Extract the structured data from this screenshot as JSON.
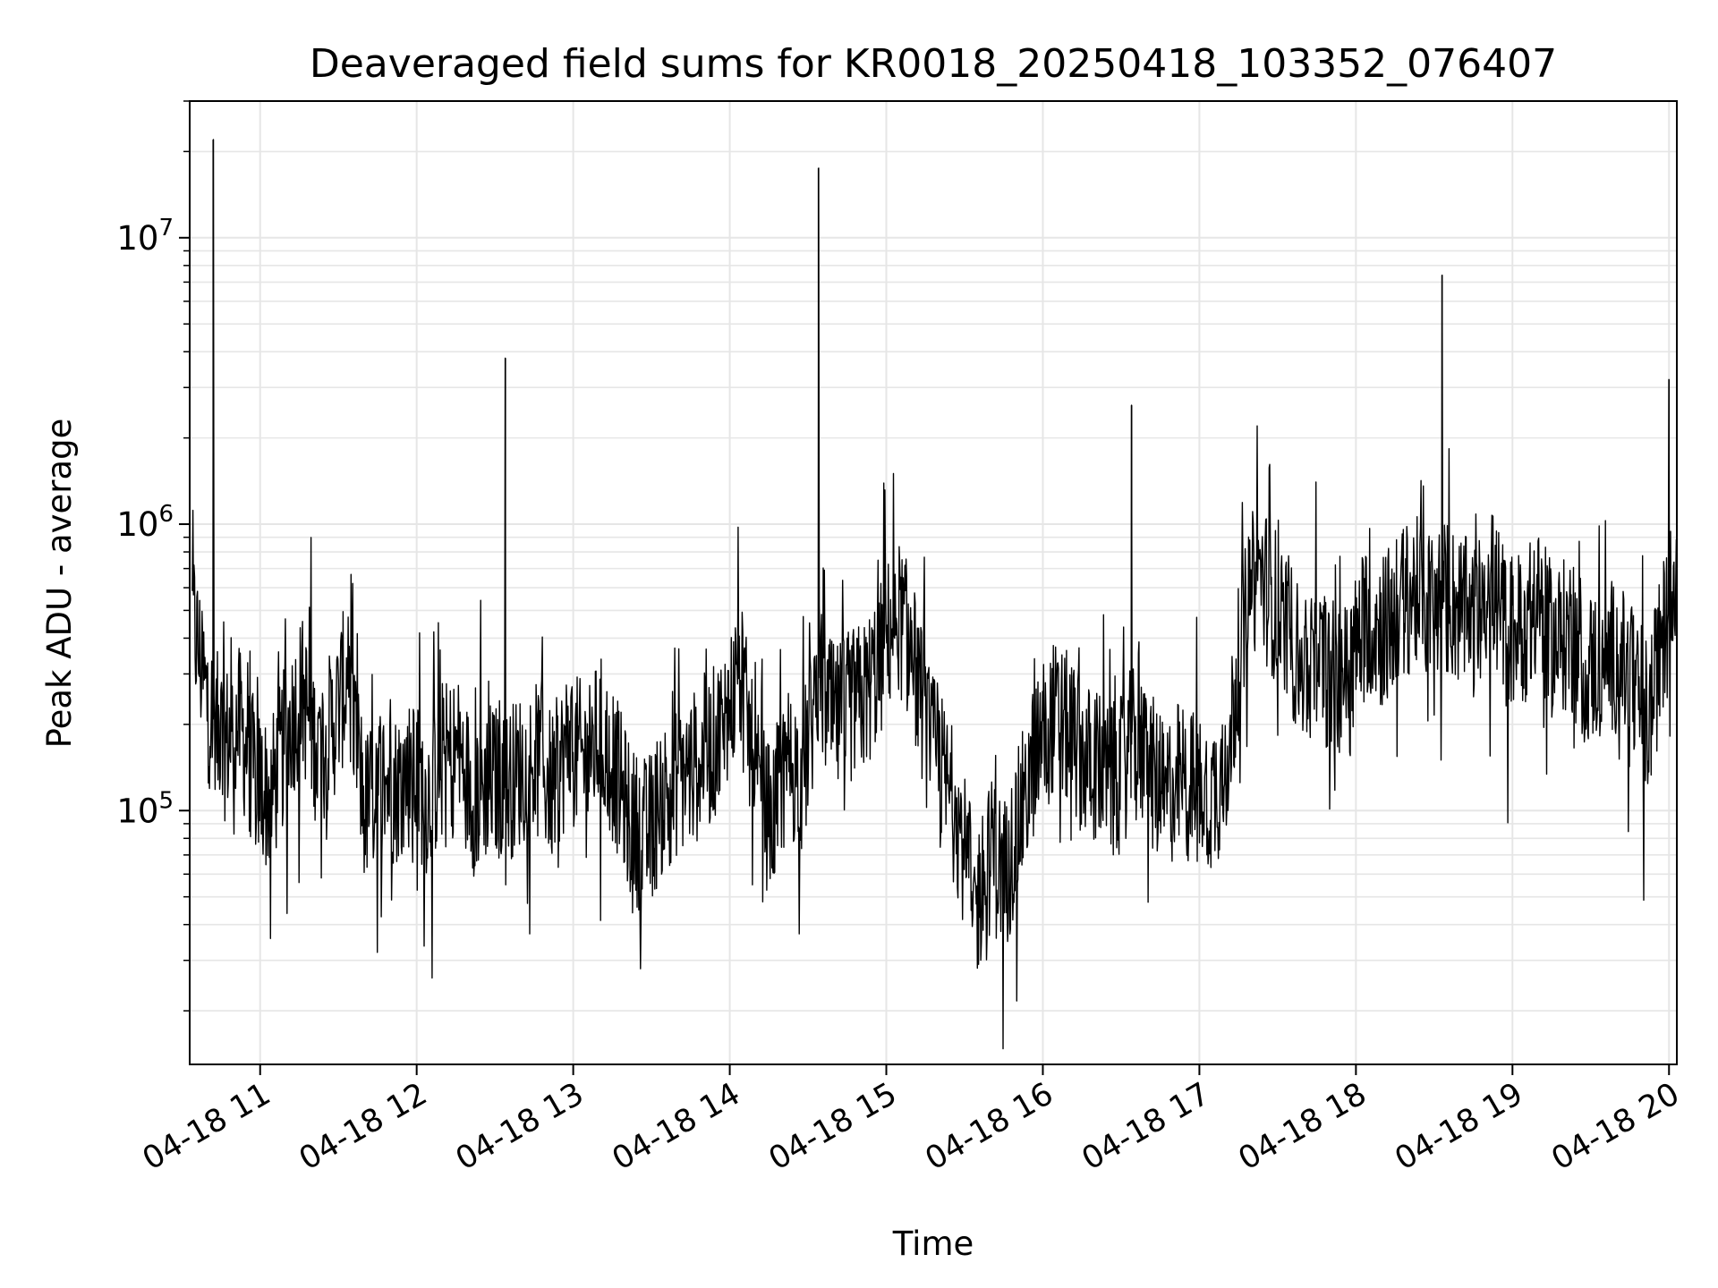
{
  "chart_data": {
    "type": "line",
    "title": "Deaveraged field sums for KR0018_20250418_103352_076407",
    "xlabel": "Time",
    "ylabel": "Peak ADU - average",
    "x_tick_labels": [
      "04-18 11",
      "04-18 12",
      "04-18 13",
      "04-18 14",
      "04-18 15",
      "04-18 16",
      "04-18 17",
      "04-18 18",
      "04-18 19",
      "04-18 20"
    ],
    "y_scale": "log",
    "y_tick_labels": [
      {
        "value": 100000,
        "base": "10",
        "exp": "5"
      },
      {
        "value": 1000000,
        "base": "10",
        "exp": "6"
      },
      {
        "value": 10000000,
        "base": "10",
        "exp": "7"
      }
    ],
    "xlim": [
      "2025-04-18 10:33",
      "2025-04-18 20:03"
    ],
    "ylim": [
      13000,
      30000000
    ],
    "grid": true,
    "line_color": "#000000",
    "grid_color": "#e6e6e6",
    "series": [
      {
        "x": [
          "2025-04-18 10:34",
          "2025-04-18 10:40",
          "2025-04-18 10:46",
          "2025-04-18 10:52",
          "2025-04-18 10:58",
          "2025-04-18 11:04",
          "2025-04-18 11:10",
          "2025-04-18 11:16",
          "2025-04-18 11:22",
          "2025-04-18 11:28",
          "2025-04-18 11:34",
          "2025-04-18 11:40",
          "2025-04-18 11:46",
          "2025-04-18 11:52",
          "2025-04-18 11:58",
          "2025-04-18 12:04",
          "2025-04-18 12:10",
          "2025-04-18 12:16",
          "2025-04-18 12:22",
          "2025-04-18 12:28",
          "2025-04-18 12:34",
          "2025-04-18 12:40",
          "2025-04-18 12:46",
          "2025-04-18 12:52",
          "2025-04-18 12:58",
          "2025-04-18 13:04",
          "2025-04-18 13:10",
          "2025-04-18 13:16",
          "2025-04-18 13:22",
          "2025-04-18 13:28",
          "2025-04-18 13:34",
          "2025-04-18 13:40",
          "2025-04-18 13:46",
          "2025-04-18 13:52",
          "2025-04-18 13:58",
          "2025-04-18 14:04",
          "2025-04-18 14:10",
          "2025-04-18 14:16",
          "2025-04-18 14:22",
          "2025-04-18 14:28",
          "2025-04-18 14:34",
          "2025-04-18 14:40",
          "2025-04-18 14:46",
          "2025-04-18 14:52",
          "2025-04-18 14:58",
          "2025-04-18 15:04",
          "2025-04-18 15:10",
          "2025-04-18 15:16",
          "2025-04-18 15:22",
          "2025-04-18 15:28",
          "2025-04-18 15:34",
          "2025-04-18 15:40",
          "2025-04-18 15:46",
          "2025-04-18 15:52",
          "2025-04-18 15:58",
          "2025-04-18 16:04",
          "2025-04-18 16:10",
          "2025-04-18 16:16",
          "2025-04-18 16:22",
          "2025-04-18 16:28",
          "2025-04-18 16:34",
          "2025-04-18 16:40",
          "2025-04-18 16:46",
          "2025-04-18 16:52",
          "2025-04-18 16:58",
          "2025-04-18 17:04",
          "2025-04-18 17:10",
          "2025-04-18 17:16",
          "2025-04-18 17:22",
          "2025-04-18 17:28",
          "2025-04-18 17:34",
          "2025-04-18 17:40",
          "2025-04-18 17:46",
          "2025-04-18 17:52",
          "2025-04-18 17:58",
          "2025-04-18 18:04",
          "2025-04-18 18:10",
          "2025-04-18 18:16",
          "2025-04-18 18:22",
          "2025-04-18 18:28",
          "2025-04-18 18:34",
          "2025-04-18 18:40",
          "2025-04-18 18:46",
          "2025-04-18 18:52",
          "2025-04-18 18:58",
          "2025-04-18 19:04",
          "2025-04-18 19:10",
          "2025-04-18 19:16",
          "2025-04-18 19:22",
          "2025-04-18 19:28",
          "2025-04-18 19:34",
          "2025-04-18 19:40",
          "2025-04-18 19:46",
          "2025-04-18 19:52",
          "2025-04-18 19:58",
          "2025-04-18 20:03"
        ],
        "values": [
          480000,
          230000,
          170000,
          200000,
          130000,
          110000,
          180000,
          260000,
          160000,
          200000,
          310000,
          100000,
          130000,
          120000,
          140000,
          110000,
          150000,
          160000,
          110000,
          130000,
          120000,
          140000,
          150000,
          120000,
          170000,
          150000,
          180000,
          140000,
          90000,
          80000,
          110000,
          130000,
          140000,
          160000,
          200000,
          310000,
          120000,
          90000,
          150000,
          130000,
          290000,
          200000,
          230000,
          250000,
          340000,
          500000,
          350000,
          180000,
          130000,
          90000,
          45000,
          70000,
          60000,
          100000,
          170000,
          210000,
          190000,
          150000,
          140000,
          120000,
          170000,
          150000,
          110000,
          130000,
          120000,
          110000,
          140000,
          380000,
          700000,
          550000,
          420000,
          300000,
          330000,
          290000,
          320000,
          480000,
          420000,
          500000,
          580000,
          520000,
          560000,
          500000,
          450000,
          620000,
          420000,
          440000,
          500000,
          380000,
          420000,
          310000,
          330000,
          350000,
          270000,
          200000,
          420000,
          620000
        ],
        "spikes": [
          {
            "x": "2025-04-18 10:42",
            "value": 22000000
          },
          {
            "x": "2025-04-18 12:34",
            "value": 3800000
          },
          {
            "x": "2025-04-18 14:34",
            "value": 17500000
          },
          {
            "x": "2025-04-18 16:34",
            "value": 2600000
          },
          {
            "x": "2025-04-18 18:33",
            "value": 7400000
          },
          {
            "x": "2025-04-18 20:00",
            "value": 3200000
          }
        ]
      }
    ]
  }
}
